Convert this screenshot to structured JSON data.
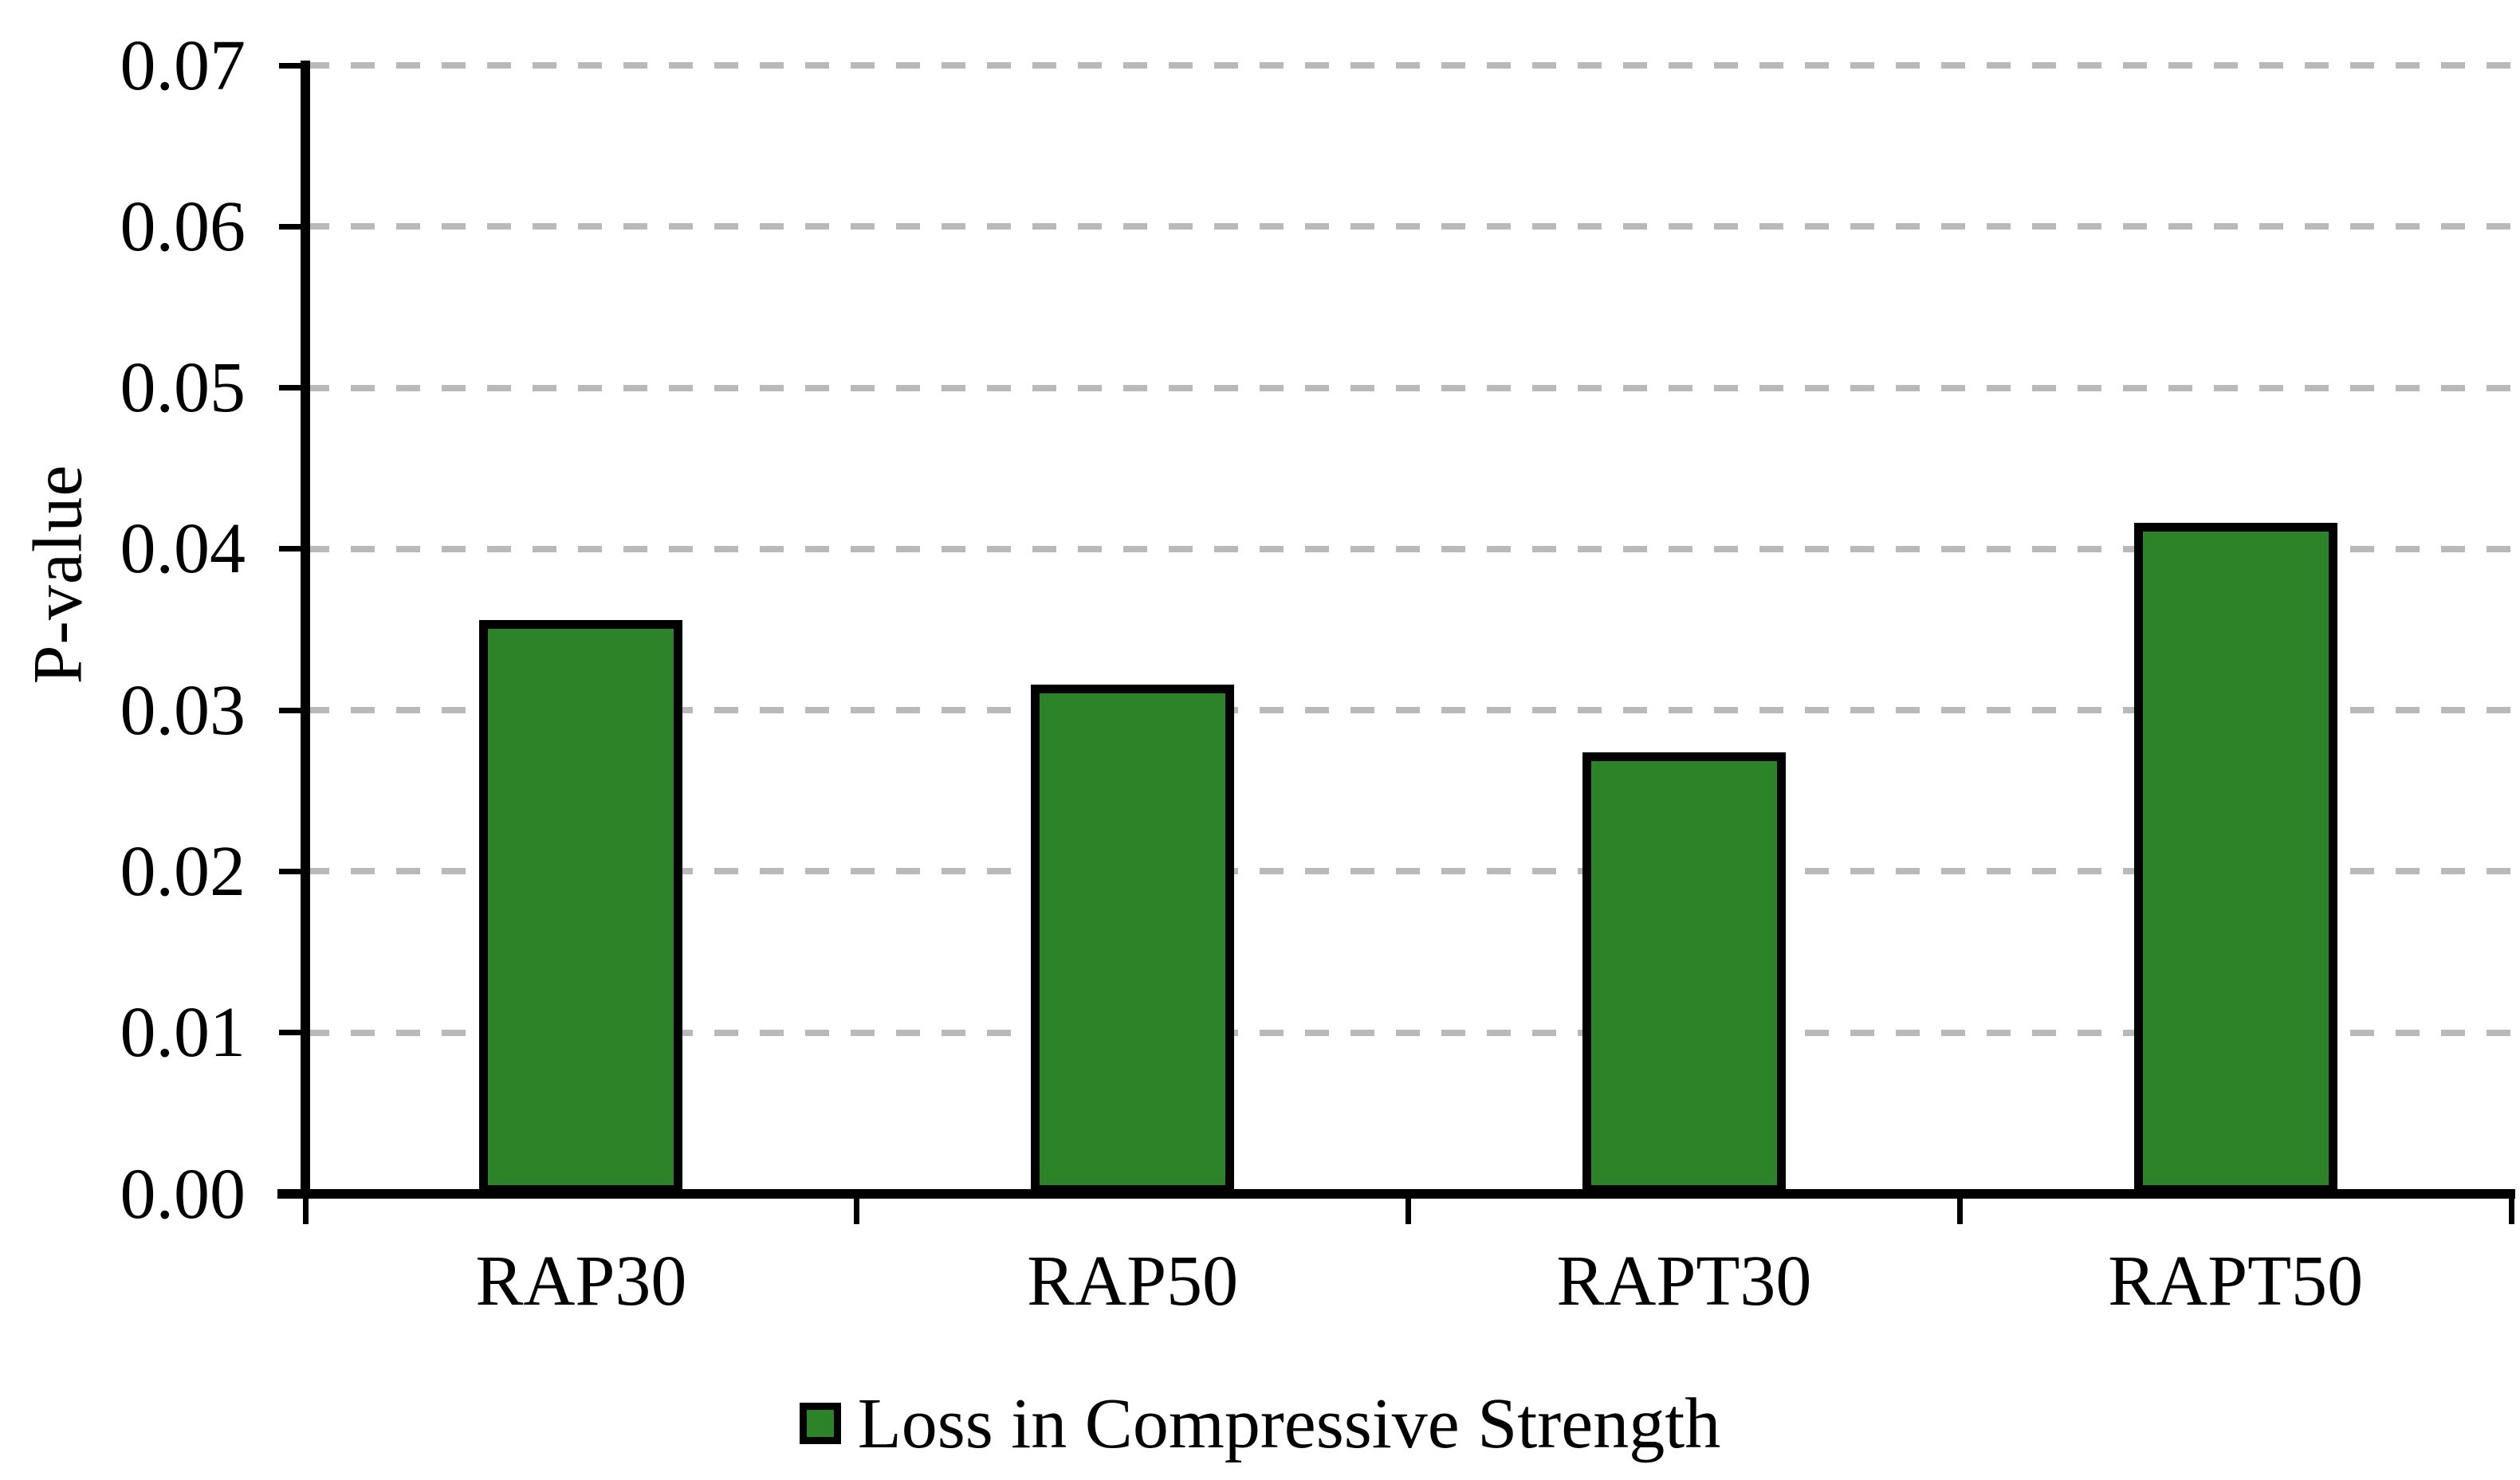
{
  "chart_data": {
    "type": "bar",
    "title": "",
    "categories": [
      "RAP30",
      "RAP50",
      "RAPT30",
      "RAPT50"
    ],
    "series": [
      {
        "name": "Loss in Compressive Strength",
        "values": [
          0.0356,
          0.0316,
          0.0274,
          0.0416
        ]
      }
    ],
    "xlabel": "",
    "ylabel": "P-value",
    "ylim": [
      0,
      0.07
    ],
    "ytick_step": 0.01,
    "ytick_labels": [
      "0.00",
      "0.01",
      "0.02",
      "0.03",
      "0.04",
      "0.05",
      "0.06",
      "0.07"
    ],
    "grid": "horizontal-dashed",
    "legend_position": "bottom-center",
    "colors": {
      "bar_fill": "#2d8328",
      "bar_border": "#000000",
      "gridline": "#b9b9b9",
      "axis": "#000000",
      "text": "#000000",
      "background": "#ffffff"
    }
  }
}
